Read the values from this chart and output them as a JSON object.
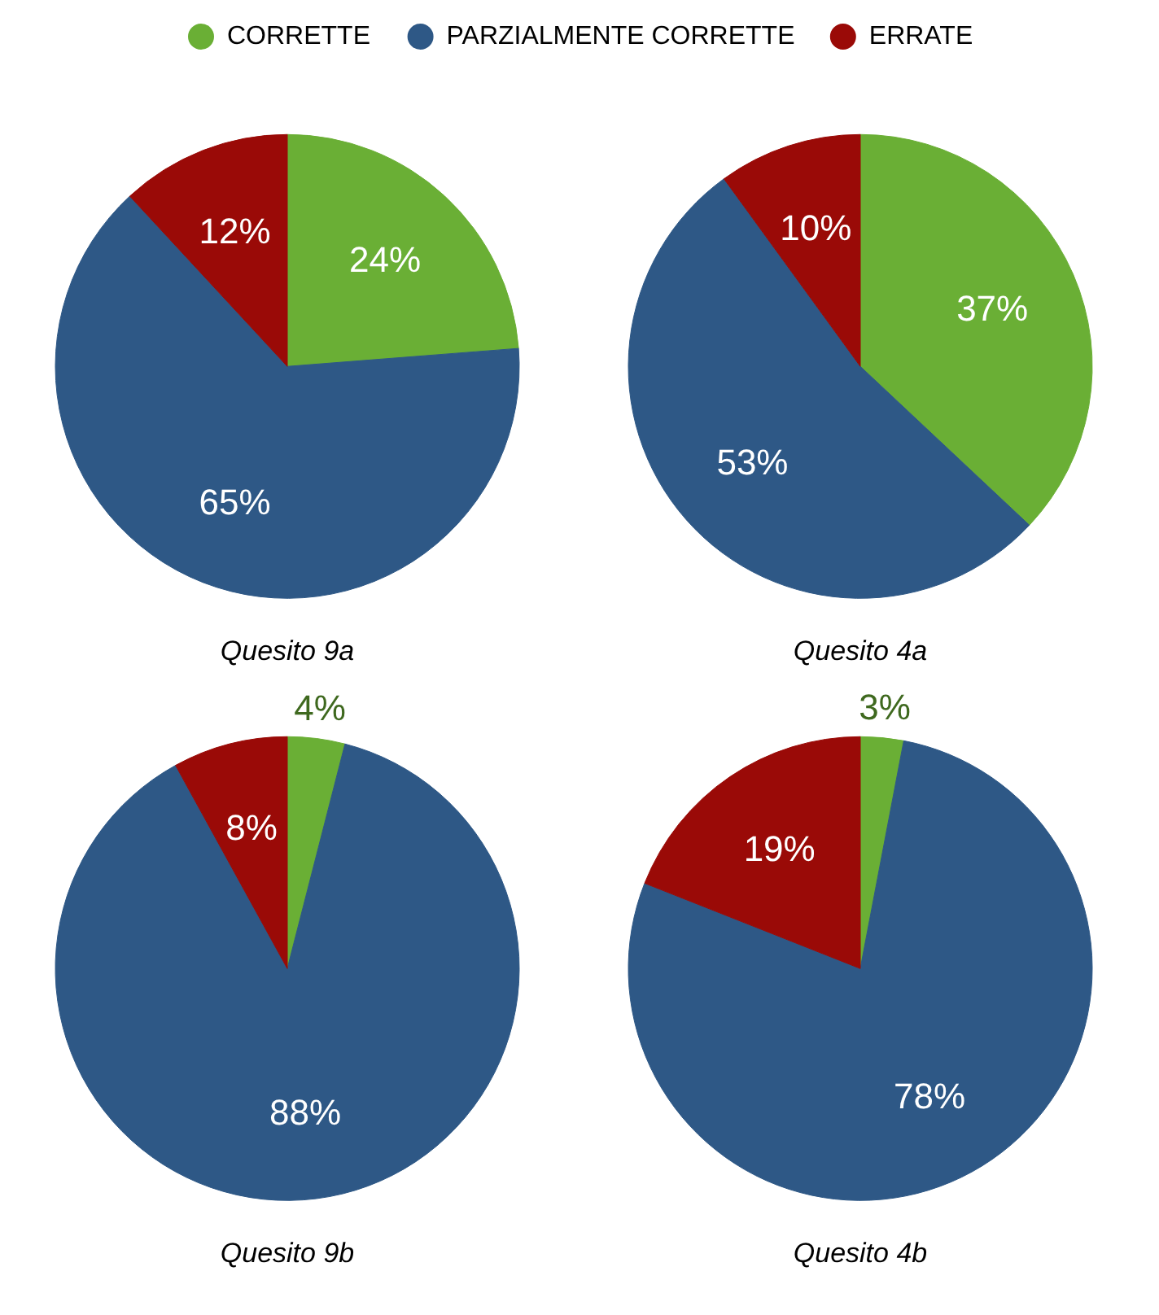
{
  "chart_data": [
    {
      "type": "pie",
      "title": "Quesito 9a",
      "categories": [
        "CORRETTE",
        "PARZIALMENTE CORRETTE",
        "ERRATE"
      ],
      "values": [
        24,
        65,
        12
      ],
      "colors": [
        "#6aaf35",
        "#2e5886",
        "#9a0a07"
      ],
      "value_labels": [
        "24%",
        "65%",
        "12%"
      ],
      "legend": "top"
    },
    {
      "type": "pie",
      "title": "Quesito 4a",
      "values": [
        37,
        53,
        10
      ],
      "colors": [
        "#6aaf35",
        "#2e5886",
        "#9a0a07"
      ],
      "value_labels": [
        "37%",
        "53%",
        "10%"
      ]
    },
    {
      "type": "pie",
      "title": "Quesito 9b",
      "values": [
        4,
        88,
        8
      ],
      "colors": [
        "#6aaf35",
        "#2e5886",
        "#9a0a07"
      ],
      "value_labels": [
        "4%",
        "88%",
        "8%"
      ]
    },
    {
      "type": "pie",
      "title": "Quesito 4b",
      "values": [
        3,
        78,
        19
      ],
      "colors": [
        "#6aaf35",
        "#2e5886",
        "#9a0a07"
      ],
      "value_labels": [
        "3%",
        "78%",
        "19%"
      ]
    }
  ]
}
